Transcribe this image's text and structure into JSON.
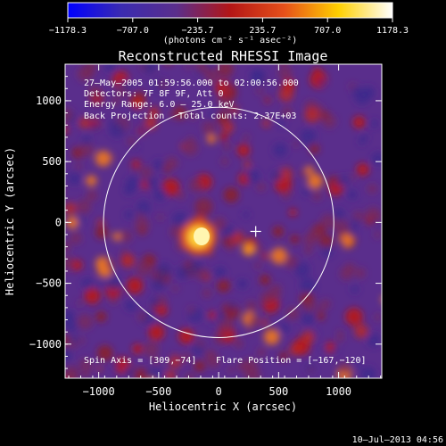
{
  "colorbar": {
    "ticks": [
      "−1178.3",
      "−707.0",
      "−235.7",
      "235.7",
      "707.0",
      "1178.3"
    ],
    "ticks_values": [
      -1178.3,
      -707.0,
      -235.7,
      235.7,
      707.0,
      1178.3
    ],
    "unit_label": "(photons cm⁻² s⁻¹ asec⁻²)",
    "range": [
      -1178.3,
      1178.3
    ]
  },
  "title": "Reconstructed RHESSI Image",
  "annotations": {
    "time_range": "27–May–2005 01:59:56.000 to 02:00:56.000",
    "detectors": "Detectors: 7F 8F 9F, Att 0",
    "energy_range": "Energy Range: 6.0 – 25.0 keV",
    "method": "Back Projection",
    "total_counts": "Total counts: 2.37E+03",
    "spin_axis": "Spin Axis = [309,−74]",
    "flare_position": "Flare Position = [−167,−120]"
  },
  "axes": {
    "xlabel": "Heliocentric X (arcsec)",
    "ylabel": "Heliocentric Y (arcsec)",
    "x_ticks": [
      "−1000",
      "−500",
      "0",
      "500",
      "1000"
    ],
    "x_tick_values": [
      -1000,
      -500,
      0,
      500,
      1000
    ],
    "y_ticks": [
      "1000",
      "500",
      "0",
      "−500",
      "−1000"
    ],
    "y_tick_values": [
      1000,
      500,
      0,
      -500,
      -1000
    ],
    "xlim": [
      -1280,
      1360
    ],
    "ylim": [
      -1280,
      1300
    ]
  },
  "map": {
    "solar_limb_radius": 960,
    "limb_center": [
      0,
      0
    ],
    "spin_axis_marker": [
      309,
      -74
    ],
    "flare_position": [
      -167,
      -120
    ]
  },
  "footer": {
    "timestamp": "10–Jul–2013 04:56"
  },
  "colors": {
    "background": "#000000",
    "text": "#ffffff",
    "colormap": [
      "#0000ff",
      "#3b2bb0",
      "#5a2e8c",
      "#b31616",
      "#e6501a",
      "#ffd000",
      "#ffffff"
    ]
  }
}
